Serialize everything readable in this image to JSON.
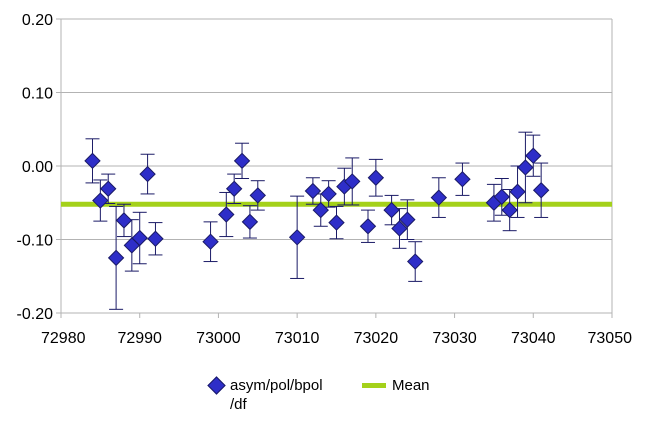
{
  "chart_data": {
    "type": "scatter",
    "title": "",
    "xlabel": "",
    "ylabel": "",
    "xlim": [
      72980,
      73050
    ],
    "ylim": [
      -0.2,
      0.2
    ],
    "x_ticks": [
      "72980",
      "72990",
      "73000",
      "73010",
      "73020",
      "73030",
      "73040",
      "73050"
    ],
    "y_ticks": [
      "-0.20",
      "-0.10",
      "0.00",
      "0.10",
      "0.20"
    ],
    "grid": "horizontal",
    "legend_position": "bottom",
    "series": [
      {
        "name": "asym/pol/bpol\n/df",
        "color": "#2e2ec8",
        "marker": "diamond",
        "points": [
          {
            "x": 72984,
            "y": 0.007,
            "err": 0.03
          },
          {
            "x": 72985,
            "y": -0.047,
            "err": 0.028
          },
          {
            "x": 72986,
            "y": -0.031,
            "err": 0.02
          },
          {
            "x": 72987,
            "y": -0.125,
            "err": 0.07
          },
          {
            "x": 72988,
            "y": -0.074,
            "err": 0.022
          },
          {
            "x": 72989,
            "y": -0.108,
            "err": 0.035
          },
          {
            "x": 72990,
            "y": -0.098,
            "err": 0.035
          },
          {
            "x": 72991,
            "y": -0.011,
            "err": 0.027
          },
          {
            "x": 72992,
            "y": -0.099,
            "err": 0.022
          },
          {
            "x": 72999,
            "y": -0.103,
            "err": 0.027
          },
          {
            "x": 73001,
            "y": -0.066,
            "err": 0.03
          },
          {
            "x": 73002,
            "y": -0.031,
            "err": 0.02
          },
          {
            "x": 73003,
            "y": 0.007,
            "err": 0.024
          },
          {
            "x": 73004,
            "y": -0.076,
            "err": 0.022
          },
          {
            "x": 73005,
            "y": -0.04,
            "err": 0.02
          },
          {
            "x": 73010,
            "y": -0.097,
            "err": 0.056
          },
          {
            "x": 73012,
            "y": -0.034,
            "err": 0.018
          },
          {
            "x": 73013,
            "y": -0.06,
            "err": 0.022
          },
          {
            "x": 73014,
            "y": -0.038,
            "err": 0.018
          },
          {
            "x": 73015,
            "y": -0.077,
            "err": 0.022
          },
          {
            "x": 73016,
            "y": -0.028,
            "err": 0.025
          },
          {
            "x": 73017,
            "y": -0.021,
            "err": 0.032
          },
          {
            "x": 73019,
            "y": -0.082,
            "err": 0.022
          },
          {
            "x": 73020,
            "y": -0.016,
            "err": 0.025
          },
          {
            "x": 73022,
            "y": -0.06,
            "err": 0.02
          },
          {
            "x": 73023,
            "y": -0.085,
            "err": 0.027
          },
          {
            "x": 73024,
            "y": -0.073,
            "err": 0.027
          },
          {
            "x": 73025,
            "y": -0.13,
            "err": 0.027
          },
          {
            "x": 73028,
            "y": -0.043,
            "err": 0.027
          },
          {
            "x": 73031,
            "y": -0.018,
            "err": 0.022
          },
          {
            "x": 73035,
            "y": -0.05,
            "err": 0.025
          },
          {
            "x": 73036,
            "y": -0.042,
            "err": 0.025
          },
          {
            "x": 73037,
            "y": -0.06,
            "err": 0.028
          },
          {
            "x": 73038,
            "y": -0.035,
            "err": 0.035
          },
          {
            "x": 73039,
            "y": -0.002,
            "err": 0.048
          },
          {
            "x": 73040,
            "y": 0.014,
            "err": 0.028
          },
          {
            "x": 73041,
            "y": -0.033,
            "err": 0.037
          }
        ]
      },
      {
        "name": "Mean",
        "color": "#a4d11a",
        "type": "line",
        "y": -0.052
      }
    ]
  }
}
